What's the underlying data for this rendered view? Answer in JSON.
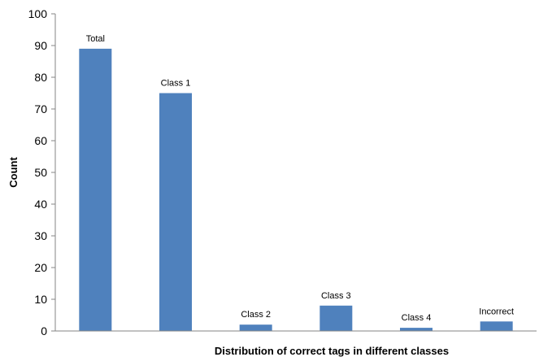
{
  "chart_data": {
    "type": "bar",
    "categories": [
      "Total",
      "Class 1",
      "Class 2",
      "Class 3",
      "Class 4",
      "Incorrect"
    ],
    "values": [
      89,
      75,
      2,
      8,
      1,
      3
    ],
    "data_labels": [
      "Total",
      "Class 1",
      "Class 2",
      "Class 3",
      "Class 4",
      "Incorrect"
    ],
    "title": "",
    "xlabel": "Distribution of correct tags in different classes",
    "ylabel": "Count",
    "ylim": [
      0,
      100
    ],
    "yticks": [
      0,
      10,
      20,
      30,
      40,
      50,
      60,
      70,
      80,
      90,
      100
    ],
    "grid": false,
    "legend": "none",
    "colors": {
      "bar": "#4f81bd",
      "axis": "#868686"
    }
  }
}
